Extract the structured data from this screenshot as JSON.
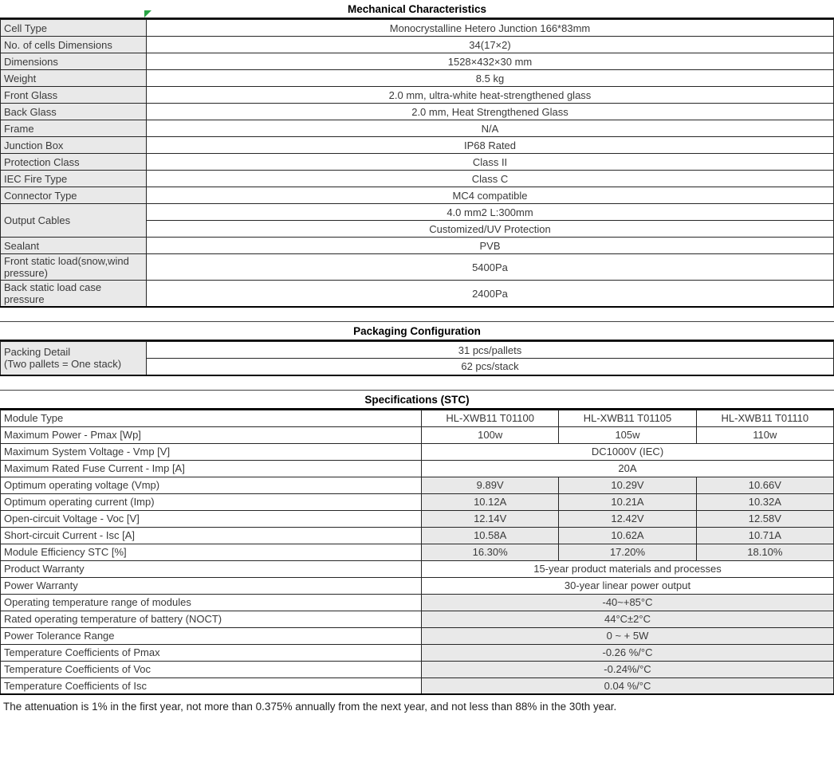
{
  "mechanical": {
    "title": "Mechanical Characteristics",
    "rows": [
      {
        "label": "Cell Type",
        "value": "Monocrystalline Hetero Junction 166*83mm"
      },
      {
        "label": "No. of cells Dimensions",
        "value": "34(17×2)"
      },
      {
        "label": "Dimensions",
        "value": "1528×432×30 mm"
      },
      {
        "label": "Weight",
        "value": "8.5 kg"
      },
      {
        "label": "Front Glass",
        "value": "2.0 mm, ultra-white heat-strengthened glass"
      },
      {
        "label": "Back Glass",
        "value": "2.0 mm, Heat Strengthened Glass"
      },
      {
        "label": "Frame",
        "value": "N/A"
      },
      {
        "label": "Junction Box",
        "value": "IP68 Rated"
      },
      {
        "label": "Protection Class",
        "value": "Class II"
      },
      {
        "label": "IEC Fire Type",
        "value": "Class C"
      },
      {
        "label": "Connector Type",
        "value": "MC4 compatible"
      },
      {
        "label": "Output Cables",
        "values": [
          "4.0 mm2  L:300mm",
          "Customized/UV Protection"
        ]
      },
      {
        "label": "Sealant",
        "value": "PVB"
      },
      {
        "label": "Front static load(snow,wind pressure)",
        "value": "5400Pa"
      },
      {
        "label": "Back static load case pressure",
        "value": "2400Pa"
      }
    ]
  },
  "packaging": {
    "title": "Packaging Configuration",
    "rows": [
      {
        "label": "Packing Detail\n(Two pallets = One stack)",
        "values": [
          "31 pcs/pallets",
          "62 pcs/stack"
        ]
      }
    ]
  },
  "specs": {
    "title": "Specifications (STC)",
    "rows": [
      {
        "label": "Module Type",
        "values": [
          "HL-XWB11 T01100",
          "HL-XWB11 T01105",
          "HL-XWB11 T01110"
        ],
        "shaded": false
      },
      {
        "label": "Maximum Power - Pmax  [Wp]",
        "values": [
          "100w",
          "105w",
          "110w"
        ],
        "shaded": false
      },
      {
        "label": "Maximum System Voltage - Vmp  [V]",
        "merged": "DC1000V (IEC)",
        "shaded": false
      },
      {
        "label": "Maximum Rated Fuse Current - Imp  [A]",
        "merged": "20A",
        "shaded": false
      },
      {
        "label": "Optimum operating voltage (Vmp)",
        "values": [
          "9.89V",
          "10.29V",
          "10.66V"
        ],
        "shaded": true
      },
      {
        "label": "Optimum operating current  (Imp)",
        "values": [
          "10.12A",
          "10.21A",
          "10.32A"
        ],
        "shaded": true
      },
      {
        "label": "Open-circuit Voltage - Voc  [V]",
        "values": [
          "12.14V",
          "12.42V",
          "12.58V"
        ],
        "shaded": true
      },
      {
        "label": "Short-circuit Current - Isc  [A]",
        "values": [
          "10.58A",
          "10.62A",
          "10.71A"
        ],
        "shaded": true
      },
      {
        "label": "Module Efficiency STC  [%]",
        "values": [
          "16.30%",
          "17.20%",
          "18.10%"
        ],
        "shaded": true
      },
      {
        "label": "Product Warranty",
        "merged": "15-year product materials and processes",
        "shaded": false
      },
      {
        "label": "Power Warranty",
        "merged": "30-year linear power output",
        "shaded": false
      },
      {
        "label": "Operating temperature range of modules",
        "merged": "-40~+85°C",
        "shaded": true
      },
      {
        "label": "Rated operating temperature of battery (NOCT)",
        "merged": "44°C±2°C",
        "shaded": true
      },
      {
        "label": "Power Tolerance Range",
        "merged": "0 ~ + 5W",
        "shaded": true
      },
      {
        "label": "Temperature Coefficients of Pmax",
        "merged": "-0.26 %/°C",
        "shaded": true
      },
      {
        "label": "Temperature Coefficients of Voc",
        "merged": "-0.24%/°C",
        "shaded": true
      },
      {
        "label": "Temperature Coefficients of Isc",
        "merged": "0.04 %/°C",
        "shaded": true
      }
    ]
  },
  "footnote": "The attenuation is 1% in the first year, not more than 0.375% annually from the next year, and not less than 88% in the 30th year."
}
